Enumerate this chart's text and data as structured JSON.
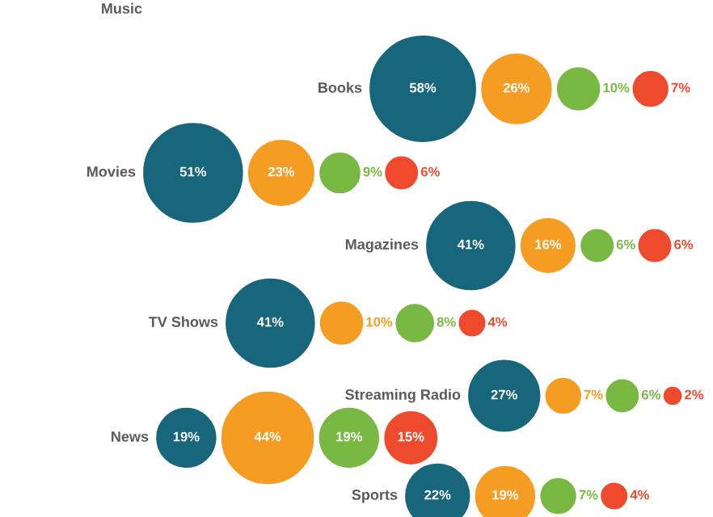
{
  "chart_data": {
    "type": "other",
    "categories": [
      "Music",
      "Books",
      "Movies",
      "Magazines",
      "TV Shows",
      "Streaming Radio",
      "News",
      "Sports"
    ],
    "series": [
      {
        "color": "#17667b",
        "values": [
          null,
          58,
          51,
          41,
          41,
          27,
          19,
          22
        ],
        "value_labels": [
          null,
          "58%",
          "51%",
          "41%",
          "41%",
          "27%",
          "19%",
          "22%"
        ]
      },
      {
        "color": "#f59c22",
        "values": [
          null,
          26,
          23,
          16,
          10,
          7,
          44,
          19
        ],
        "value_labels": [
          null,
          "26%",
          "23%",
          "16%",
          "10%",
          "7%",
          "44%",
          "19%"
        ]
      },
      {
        "color": "#78b843",
        "values": [
          null,
          10,
          9,
          6,
          8,
          6,
          19,
          7
        ],
        "value_labels": [
          null,
          "10%",
          "9%",
          "6%",
          "8%",
          "6%",
          "19%",
          "7%"
        ]
      },
      {
        "color": "#ee4b2e",
        "values": [
          null,
          7,
          6,
          6,
          4,
          2,
          15,
          4
        ],
        "value_labels": [
          null,
          "7%",
          "6%",
          "6%",
          "4%",
          "2%",
          "15%",
          "4%"
        ]
      }
    ]
  }
}
